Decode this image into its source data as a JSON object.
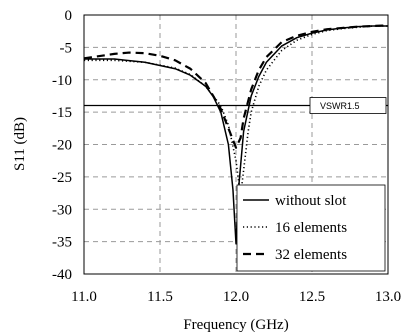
{
  "chart_data": {
    "type": "line",
    "xlabel": "Frequency (GHz)",
    "ylabel": "S11 (dB)",
    "xlim": [
      11.0,
      13.0
    ],
    "ylim": [
      -40,
      0
    ],
    "xticks": [
      "11.0",
      "11.5",
      "12.0",
      "12.5",
      "13.0"
    ],
    "yticks": [
      "0",
      "-5",
      "-10",
      "-15",
      "-20",
      "-25",
      "-30",
      "-35",
      "-40"
    ],
    "grid": true,
    "legend_position": "bottom-right",
    "reference_line": {
      "y": -13.98,
      "label": "VSWR1.5"
    },
    "series": [
      {
        "name": "without slot",
        "style": "solid",
        "x": [
          11.0,
          11.2,
          11.4,
          11.6,
          11.7,
          11.8,
          11.85,
          11.9,
          11.95,
          11.98,
          12.0,
          12.02,
          12.05,
          12.1,
          12.15,
          12.2,
          12.3,
          12.4,
          12.5,
          12.6,
          12.7,
          12.8,
          12.9,
          13.0
        ],
        "values": [
          -6.8,
          -6.8,
          -7.3,
          -8.3,
          -9.3,
          -11.0,
          -12.6,
          -15.0,
          -20.0,
          -27.0,
          -35.3,
          -26.0,
          -18.0,
          -12.5,
          -9.5,
          -7.3,
          -4.8,
          -3.5,
          -2.8,
          -2.3,
          -2.0,
          -1.8,
          -1.7,
          -1.7
        ]
      },
      {
        "name": "16 elements",
        "style": "dotted",
        "x": [
          11.0,
          11.2,
          11.4,
          11.6,
          11.7,
          11.8,
          11.9,
          11.95,
          12.0,
          12.03,
          12.05,
          12.08,
          12.1,
          12.15,
          12.2,
          12.3,
          12.4,
          12.5,
          12.6,
          12.7,
          12.8,
          12.9,
          13.0
        ],
        "values": [
          -7.0,
          -7.0,
          -7.3,
          -8.2,
          -9.2,
          -11.0,
          -14.0,
          -17.0,
          -22.5,
          -28.0,
          -24.0,
          -18.0,
          -15.0,
          -11.0,
          -8.5,
          -5.5,
          -3.9,
          -3.0,
          -2.4,
          -2.1,
          -1.9,
          -1.7,
          -1.7
        ]
      },
      {
        "name": "32 elements",
        "style": "dashed",
        "x": [
          11.0,
          11.2,
          11.3,
          11.4,
          11.5,
          11.6,
          11.7,
          11.8,
          11.9,
          11.95,
          12.0,
          12.03,
          12.05,
          12.1,
          12.15,
          12.2,
          12.3,
          12.4,
          12.5,
          12.6,
          12.7,
          12.8,
          12.9,
          13.0
        ],
        "values": [
          -6.7,
          -6.0,
          -5.8,
          -5.9,
          -6.3,
          -7.0,
          -8.3,
          -10.5,
          -14.5,
          -17.5,
          -20.5,
          -19.0,
          -16.0,
          -11.5,
          -8.5,
          -6.5,
          -4.2,
          -3.2,
          -2.6,
          -2.2,
          -2.0,
          -1.8,
          -1.7,
          -1.6
        ]
      }
    ]
  }
}
